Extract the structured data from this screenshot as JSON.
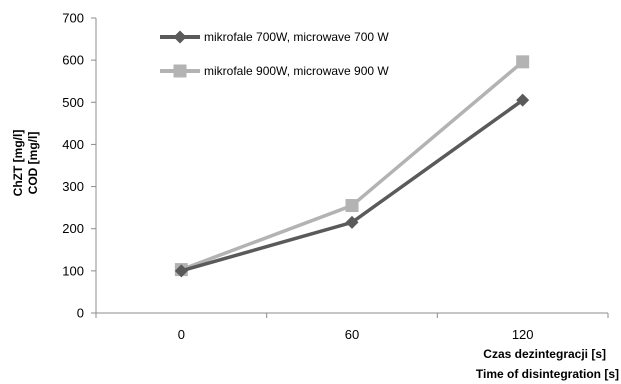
{
  "chart_data": {
    "type": "line",
    "categories": [
      "0",
      "60",
      "120"
    ],
    "series": [
      {
        "name": "mikrofale 700W, microwave 700 W",
        "values": [
          100,
          215,
          505
        ],
        "color": "#5a5a5a",
        "marker": "diamond"
      },
      {
        "name": "mikrofale 900W, microwave 900 W",
        "values": [
          103,
          255,
          596
        ],
        "color": "#b3b3b3",
        "marker": "square"
      }
    ],
    "ylim": [
      0,
      700
    ],
    "yticks": [
      0,
      100,
      200,
      300,
      400,
      500,
      600,
      700
    ],
    "ylabel_lines": [
      "ChZT [mg/l]",
      "COD [mg/l]"
    ],
    "xlabel_lines": [
      "Czas dezintegracji [s]",
      "Time of disintegration [s]"
    ],
    "legend": "top-left inside",
    "grid": false
  }
}
